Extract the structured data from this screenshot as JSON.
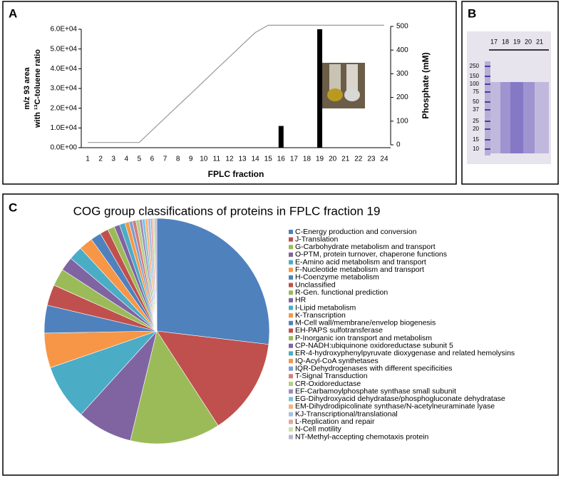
{
  "panels": {
    "a": "A",
    "b": "B",
    "c": "C"
  },
  "gel": {
    "lanes": [
      "17",
      "18",
      "19",
      "20",
      "21"
    ],
    "markers": [
      "250",
      "150",
      "100",
      "75",
      "50",
      "37",
      "25",
      "20",
      "15",
      "10"
    ]
  },
  "chart_data": [
    {
      "type": "bar",
      "xlabel": "FPLC fraction",
      "ylabel": [
        "m/z 93 area",
        "with ¹³C-toluene ratio"
      ],
      "y2label": "Phosphate (mM)",
      "categories": [
        "1",
        "2",
        "3",
        "4",
        "5",
        "6",
        "7",
        "8",
        "9",
        "10",
        "11",
        "12",
        "13",
        "14",
        "15",
        "16",
        "17",
        "18",
        "19",
        "20",
        "21",
        "22",
        "23",
        "24"
      ],
      "series": [
        {
          "color": "#000000",
          "values": [
            0,
            0,
            0,
            0,
            0,
            0,
            0,
            0,
            0,
            0,
            0,
            0,
            0,
            0,
            0,
            11000,
            0,
            0,
            60000,
            0,
            0,
            0,
            0,
            0
          ]
        },
        {
          "type": "line",
          "axis": "y2",
          "color": "#999999",
          "values": [
            10,
            10,
            10,
            10,
            10,
            62,
            113,
            165,
            216,
            268,
            320,
            371,
            423,
            474,
            505,
            505,
            505,
            505,
            505,
            505,
            505,
            505,
            505,
            505
          ]
        }
      ],
      "ylim": [
        0,
        60000
      ],
      "yticks": [
        {
          "value": 0,
          "label": "0.0E+00"
        },
        {
          "value": 10000,
          "label": "1.0E+04"
        },
        {
          "value": 20000,
          "label": "2.0E+04"
        },
        {
          "value": 30000,
          "label": "3.0E+04"
        },
        {
          "value": 40000,
          "label": "4.0E+04"
        },
        {
          "value": 50000,
          "label": "5.0E+04"
        },
        {
          "value": 60000,
          "label": "6.0E+04"
        }
      ],
      "y2lim": [
        0,
        500
      ],
      "y2ticks": [
        0,
        100,
        200,
        300,
        400,
        500
      ],
      "grid": false
    },
    {
      "type": "pie",
      "title": "COG group classifications of proteins in FPLC fraction 19",
      "categories": [
        "C-Energy production and conversion",
        "J-Translation",
        "G-Carbohydrate metabolism and transport",
        "O-PTM, protein turnover, chaperone functions",
        "E-Amino acid metabolism and transport",
        "F-Nucleotide metabolism and transport",
        "H-Coenzyme metabolism",
        "Unclassified",
        "R-Gen. functional prediction",
        "HR",
        "I-Lipid metabolism",
        "K-Transcription",
        "M-Cell wall/membrane/envelop biogenesis",
        "EH-PAPS sulfotransferase",
        "P-Inorganic ion transport and metabolism",
        "CP-NADH:ubiquinone oxidoreductase subunit 5",
        "ER-4-hydroxyphenylpyruvate dioxygenase and related hemolysins",
        "IQ-Acyl-CoA synthetases",
        "IQR-Dehydrogenases with different specificities",
        "T-Signal Transduction",
        "CR-Oxidoreductase",
        "EF-Carbamoylphosphate synthase small subunit",
        "EG-Dihydroxyacid dehydratase/phosphogluconate dehydratase",
        "EM-Dihydrodipicolinate synthase/N-acetylneuraminate lyase",
        "KJ-Transcriptional/translational",
        "L-Replication and repair",
        "N-Cell motility",
        "NT-Methyl-accepting chemotaxis protein"
      ],
      "values": [
        27,
        14,
        13,
        8,
        8,
        5,
        4,
        3,
        2.5,
        2,
        2,
        2,
        1.5,
        1.2,
        1,
        0.8,
        0.8,
        0.6,
        0.5,
        0.5,
        0.5,
        0.4,
        0.4,
        0.4,
        0.4,
        0.3,
        0.3,
        0.3
      ],
      "colors": [
        "#4f81bd",
        "#c0504d",
        "#9bbb59",
        "#8064a2",
        "#4bacc6",
        "#f79646",
        "#4f81bd",
        "#c0504d",
        "#9bbb59",
        "#8064a2",
        "#4bacc6",
        "#f79646",
        "#4f81bd",
        "#c0504d",
        "#9bbb59",
        "#8064a2",
        "#4bacc6",
        "#f79646",
        "#7ca0d4",
        "#d47c7a",
        "#b5cf85",
        "#a08cbc",
        "#7cc4d8",
        "#f9b37a",
        "#a7bfe2",
        "#e0a7a6",
        "#cce0ab",
        "#bfb2d3"
      ]
    }
  ]
}
